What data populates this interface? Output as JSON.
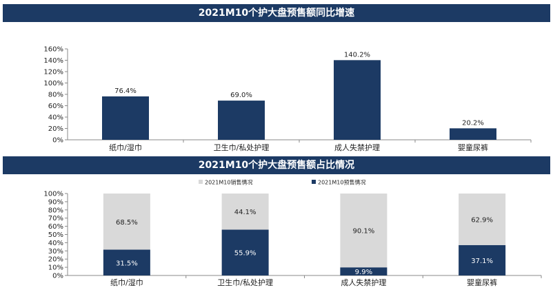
{
  "chart_data": [
    {
      "type": "bar",
      "title": "2021M10个护大盘预售额同比增速",
      "categories": [
        "纸巾/湿巾",
        "卫生巾/私处护理",
        "成人失禁护理",
        "婴童尿裤"
      ],
      "values": [
        76.4,
        69.0,
        140.2,
        20.2
      ],
      "value_labels": [
        "76.4%",
        "69.0%",
        "140.2%",
        "20.2%"
      ],
      "ylim": [
        0,
        160
      ],
      "yticks": [
        "0%",
        "20%",
        "40%",
        "60%",
        "80%",
        "100%",
        "120%",
        "140%",
        "160%"
      ],
      "color": "#1c3a64"
    },
    {
      "type": "bar",
      "stacked": true,
      "title": "2021M10个护大盘预售额占比情况",
      "categories": [
        "纸巾/湿巾",
        "卫生巾/私处护理",
        "成人失禁护理",
        "婴童尿裤"
      ],
      "series": [
        {
          "name": "2021M10预售情况",
          "values": [
            31.5,
            55.9,
            9.9,
            37.1
          ],
          "labels": [
            "31.5%",
            "55.9%",
            "9.9%",
            "37.1%"
          ],
          "color": "#1c3a64"
        },
        {
          "name": "2021M10销售情况",
          "values": [
            68.5,
            44.1,
            90.1,
            62.9
          ],
          "labels": [
            "68.5%",
            "44.1%",
            "90.1%",
            "62.9%"
          ],
          "color": "#d9d9d9"
        }
      ],
      "legend": [
        "2021M10销售情况",
        "2021M10预售情况"
      ],
      "ylim": [
        0,
        100
      ],
      "yticks": [
        "0%",
        "10%",
        "20%",
        "30%",
        "40%",
        "50%",
        "60%",
        "70%",
        "80%",
        "90%",
        "100%"
      ]
    }
  ]
}
